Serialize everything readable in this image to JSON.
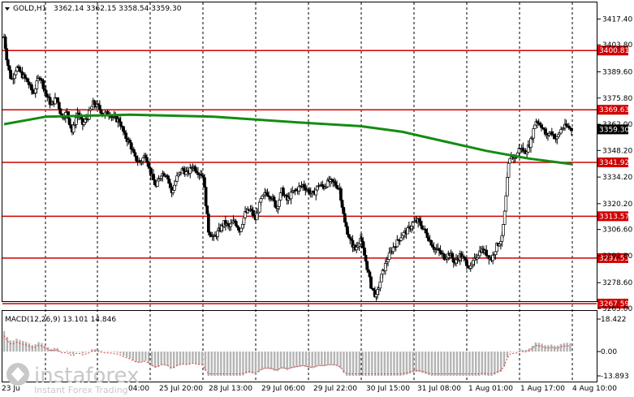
{
  "header": {
    "symbol_tf": "GOLD,H1",
    "ohlc": "3362.14 3362.15 3358.54 3359.30",
    "dropdown_icon": "triangle-down-icon"
  },
  "macd": {
    "label": "MACD(12,26,9) 13.101 14.846",
    "axis_labels": [
      "18.422",
      "0.00",
      "-13.893"
    ]
  },
  "watermark": {
    "brand": "instaforex",
    "tagline": "Instant Forex Trading",
    "partial_date": "23 Ju",
    "partial_tail": "04:00"
  },
  "chart_data": {
    "type": "candlestick",
    "symbol": "GOLD",
    "timeframe": "H1",
    "ylim": [
      3265.0,
      3421.0
    ],
    "y_ticks": [
      "3417.40",
      "3403.80",
      "3389.60",
      "3375.80",
      "3362.00",
      "3348.20",
      "3334.20",
      "3320.20",
      "3306.60",
      "3292.80",
      "3278.60",
      "3265.00"
    ],
    "x_labels": [
      "25 Jul 20:00",
      "28 Jul 13:00",
      "29 Jul 06:00",
      "29 Jul 22:00",
      "30 Jul 15:00",
      "31 Jul 08:00",
      "1 Aug 01:00",
      "1 Aug 17:00",
      "4 Aug 10:00"
    ],
    "levels": [
      {
        "value": 3400.81,
        "label": "3400.81"
      },
      {
        "value": 3369.63,
        "label": "3369.63"
      },
      {
        "value": 3341.92,
        "label": "3341.92"
      },
      {
        "value": 3313.57,
        "label": "3313.57"
      },
      {
        "value": 3291.53,
        "label": "3291.53"
      },
      {
        "value": 3267.59,
        "label": "3267.59"
      }
    ],
    "current_price": {
      "value": 3359.3,
      "label": "3359.30"
    },
    "close_path": [
      [
        0,
        3408
      ],
      [
        3,
        3395
      ],
      [
        7,
        3385
      ],
      [
        12,
        3392
      ],
      [
        17,
        3388
      ],
      [
        22,
        3385
      ],
      [
        28,
        3378
      ],
      [
        34,
        3388
      ],
      [
        40,
        3378
      ],
      [
        45,
        3372
      ],
      [
        50,
        3376
      ],
      [
        55,
        3366
      ],
      [
        60,
        3368
      ],
      [
        65,
        3358
      ],
      [
        70,
        3368
      ],
      [
        75,
        3362
      ],
      [
        80,
        3366
      ],
      [
        85,
        3373
      ],
      [
        90,
        3371
      ],
      [
        95,
        3367
      ],
      [
        100,
        3368
      ],
      [
        105,
        3365
      ],
      [
        110,
        3364
      ],
      [
        115,
        3356
      ],
      [
        120,
        3352
      ],
      [
        125,
        3344
      ],
      [
        130,
        3342
      ],
      [
        135,
        3346
      ],
      [
        140,
        3336
      ],
      [
        145,
        3329
      ],
      [
        150,
        3336
      ],
      [
        155,
        3336
      ],
      [
        160,
        3326
      ],
      [
        165,
        3334
      ],
      [
        170,
        3338
      ],
      [
        175,
        3336
      ],
      [
        180,
        3340
      ],
      [
        185,
        3337
      ],
      [
        190,
        3335
      ],
      [
        195,
        3306
      ],
      [
        200,
        3302
      ],
      [
        205,
        3306
      ],
      [
        210,
        3310
      ],
      [
        215,
        3308
      ],
      [
        220,
        3311
      ],
      [
        225,
        3306
      ],
      [
        230,
        3315
      ],
      [
        235,
        3317
      ],
      [
        240,
        3312
      ],
      [
        245,
        3322
      ],
      [
        250,
        3326
      ],
      [
        255,
        3324
      ],
      [
        260,
        3318
      ],
      [
        265,
        3327
      ],
      [
        270,
        3322
      ],
      [
        275,
        3326
      ],
      [
        280,
        3328
      ],
      [
        285,
        3330
      ],
      [
        290,
        3327
      ],
      [
        295,
        3325
      ],
      [
        300,
        3330
      ],
      [
        305,
        3329
      ],
      [
        310,
        3332
      ],
      [
        315,
        3331
      ],
      [
        320,
        3328
      ],
      [
        325,
        3310
      ],
      [
        330,
        3301
      ],
      [
        335,
        3296
      ],
      [
        340,
        3302
      ],
      [
        345,
        3290
      ],
      [
        350,
        3277
      ],
      [
        355,
        3271
      ],
      [
        360,
        3282
      ],
      [
        365,
        3290
      ],
      [
        370,
        3296
      ],
      [
        375,
        3300
      ],
      [
        380,
        3304
      ],
      [
        385,
        3306
      ],
      [
        390,
        3310
      ],
      [
        395,
        3311
      ],
      [
        400,
        3307
      ],
      [
        405,
        3302
      ],
      [
        410,
        3297
      ],
      [
        415,
        3295
      ],
      [
        420,
        3292
      ],
      [
        425,
        3294
      ],
      [
        430,
        3289
      ],
      [
        435,
        3293
      ],
      [
        440,
        3290
      ],
      [
        445,
        3286
      ],
      [
        450,
        3292
      ],
      [
        455,
        3296
      ],
      [
        460,
        3294
      ],
      [
        465,
        3291
      ],
      [
        470,
        3298
      ],
      [
        475,
        3302
      ],
      [
        478,
        3318
      ],
      [
        481,
        3340
      ],
      [
        484,
        3346
      ],
      [
        488,
        3344
      ],
      [
        492,
        3350
      ],
      [
        497,
        3347
      ],
      [
        502,
        3352
      ],
      [
        507,
        3364
      ],
      [
        512,
        3362
      ],
      [
        517,
        3356
      ],
      [
        522,
        3358
      ],
      [
        527,
        3354
      ],
      [
        532,
        3360
      ],
      [
        537,
        3361
      ],
      [
        542,
        3359
      ]
    ],
    "ma_path": [
      [
        0,
        3362
      ],
      [
        40,
        3366
      ],
      [
        120,
        3367
      ],
      [
        200,
        3366
      ],
      [
        280,
        3363
      ],
      [
        340,
        3361
      ],
      [
        380,
        3358
      ],
      [
        420,
        3353
      ],
      [
        460,
        3348
      ],
      [
        500,
        3344
      ],
      [
        542,
        3341
      ]
    ]
  }
}
